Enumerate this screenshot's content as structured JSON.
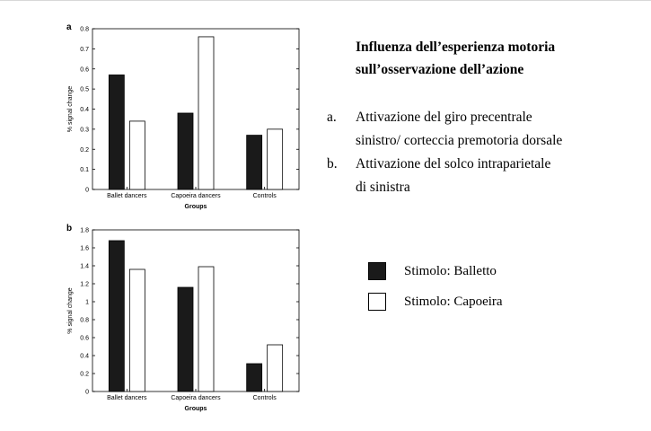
{
  "text": {
    "title_line1": "Influenza dell’esperienza motoria",
    "title_line2": "sull’osservazione dell’azione",
    "list": [
      {
        "marker": "a.",
        "line1": "Attivazione del giro precentrale",
        "line2": "sinistro/ corteccia premotoria dorsale"
      },
      {
        "marker": "b.",
        "line1": "Attivazione del solco intraparietale",
        "line2": "di sinistra"
      }
    ]
  },
  "legend": [
    {
      "label": "Stimolo: Balletto",
      "color": "#1a1a1a"
    },
    {
      "label": "Stimolo: Capoeira",
      "color": "#ffffff"
    }
  ],
  "chart_data": [
    {
      "type": "bar",
      "panel_label": "a",
      "categories": [
        "Ballet dancers",
        "Capoeira dancers",
        "Controls"
      ],
      "series": [
        {
          "values": [
            0.57,
            0.38,
            0.27
          ],
          "color": "#1a1a1a"
        },
        {
          "values": [
            0.34,
            0.76,
            0.3
          ],
          "color": "#ffffff"
        }
      ],
      "xlabel": "Groups",
      "ylabel": "% signal change",
      "ylim": [
        0,
        0.8
      ],
      "yticks": [
        "0",
        "0.1",
        "0.2",
        "0.3",
        "0.4",
        "0.5",
        "0.6",
        "0.7",
        "0.8"
      ],
      "grid": false
    },
    {
      "type": "bar",
      "panel_label": "b",
      "categories": [
        "Ballet dancers",
        "Capoeira dancers",
        "Controls"
      ],
      "series": [
        {
          "values": [
            1.68,
            1.16,
            0.31
          ],
          "color": "#1a1a1a"
        },
        {
          "values": [
            1.36,
            1.39,
            0.52
          ],
          "color": "#ffffff"
        }
      ],
      "xlabel": "Groups",
      "ylabel": "% signal change",
      "ylim": [
        0,
        1.8
      ],
      "yticks": [
        "0",
        "0.2",
        "0.4",
        "0.6",
        "0.8",
        "1",
        "1.2",
        "1.4",
        "1.6",
        "1.8"
      ],
      "grid": false
    }
  ]
}
